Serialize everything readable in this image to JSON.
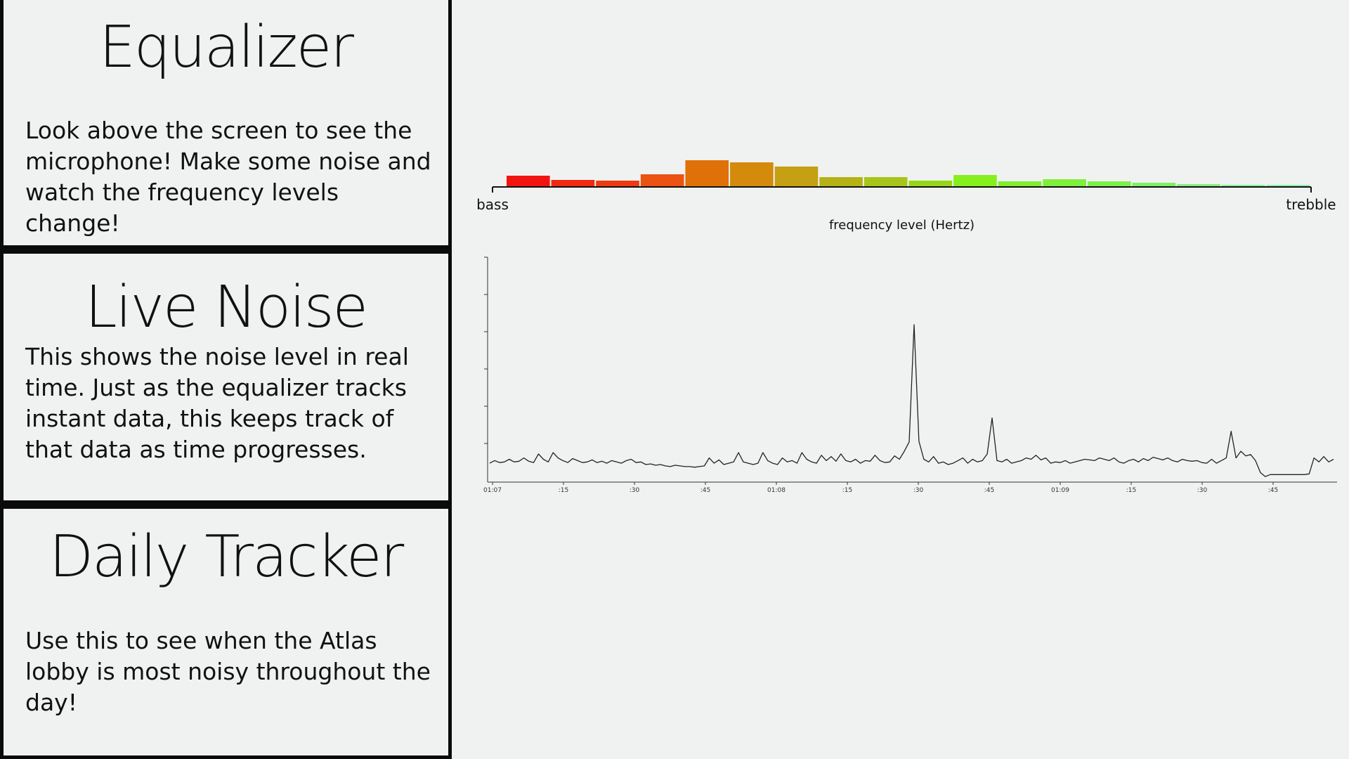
{
  "panels": {
    "equalizer": {
      "title": "Equalizer",
      "text": "Look above the screen to see the microphone! Make some noise and watch the frequency levels change!"
    },
    "live_noise": {
      "title": "Live Noise",
      "text": "This shows the noise level in real time. Just as the equalizer tracks instant data, this keeps track of that data as time progresses."
    },
    "daily_tracker": {
      "title": "Daily Tracker",
      "text": "Use this to see when the Atlas lobby is most noisy throughout the day!"
    }
  },
  "chart_data": [
    {
      "type": "bar",
      "xlabel": "frequency level (Hertz)",
      "tick_labels": [
        "bass",
        "trebble"
      ],
      "values": [
        16,
        10,
        9,
        18,
        38,
        35,
        29,
        14,
        14,
        9,
        17,
        8,
        11,
        8,
        6,
        4,
        3,
        3
      ],
      "colors": [
        "#f2140e",
        "#ee2a12",
        "#ee3a10",
        "#ec5212",
        "#e07008",
        "#d48a0a",
        "#c4a012",
        "#b4b214",
        "#a8c41a",
        "#96d618",
        "#86f01e",
        "#80ee2c",
        "#7ef03a",
        "#7ef04a",
        "#80f060",
        "#84f07a",
        "#88f094",
        "#8cf0ac"
      ],
      "grid": false
    },
    {
      "type": "line",
      "x_tick_labels": [
        "01:07",
        ":15",
        ":30",
        ":45",
        "01:08",
        ":15",
        ":30",
        ":45",
        "01:09",
        ":15",
        ":30",
        ":45"
      ],
      "values": [
        22,
        26,
        23,
        24,
        28,
        24,
        25,
        30,
        25,
        23,
        36,
        28,
        24,
        38,
        30,
        26,
        23,
        29,
        26,
        23,
        24,
        27,
        23,
        25,
        22,
        26,
        24,
        22,
        26,
        28,
        23,
        24,
        20,
        21,
        19,
        20,
        18,
        17,
        19,
        18,
        17,
        17,
        16,
        17,
        18,
        30,
        22,
        27,
        20,
        22,
        24,
        38,
        24,
        22,
        20,
        22,
        38,
        26,
        22,
        20,
        30,
        24,
        26,
        22,
        38,
        28,
        24,
        22,
        34,
        26,
        32,
        25,
        36,
        26,
        24,
        28,
        22,
        26,
        25,
        34,
        26,
        23,
        24,
        33,
        28,
        40,
        54,
        230,
        55,
        28,
        24,
        32,
        22,
        24,
        20,
        22,
        26,
        30,
        22,
        28,
        24,
        26,
        36,
        90,
        26,
        24,
        28,
        22,
        24,
        26,
        30,
        28,
        34,
        27,
        30,
        22,
        24,
        23,
        26,
        22,
        24,
        26,
        28,
        27,
        26,
        30,
        28,
        26,
        30,
        24,
        22,
        26,
        28,
        24,
        29,
        26,
        31,
        29,
        27,
        30,
        26,
        24,
        28,
        26,
        25,
        26,
        23,
        22,
        28,
        22,
        26,
        30,
        70,
        30,
        40,
        33,
        35,
        26,
        8,
        2,
        5,
        5,
        5,
        5,
        5,
        5,
        5,
        5,
        6,
        30,
        24,
        32,
        24,
        28
      ],
      "grid": false
    }
  ]
}
